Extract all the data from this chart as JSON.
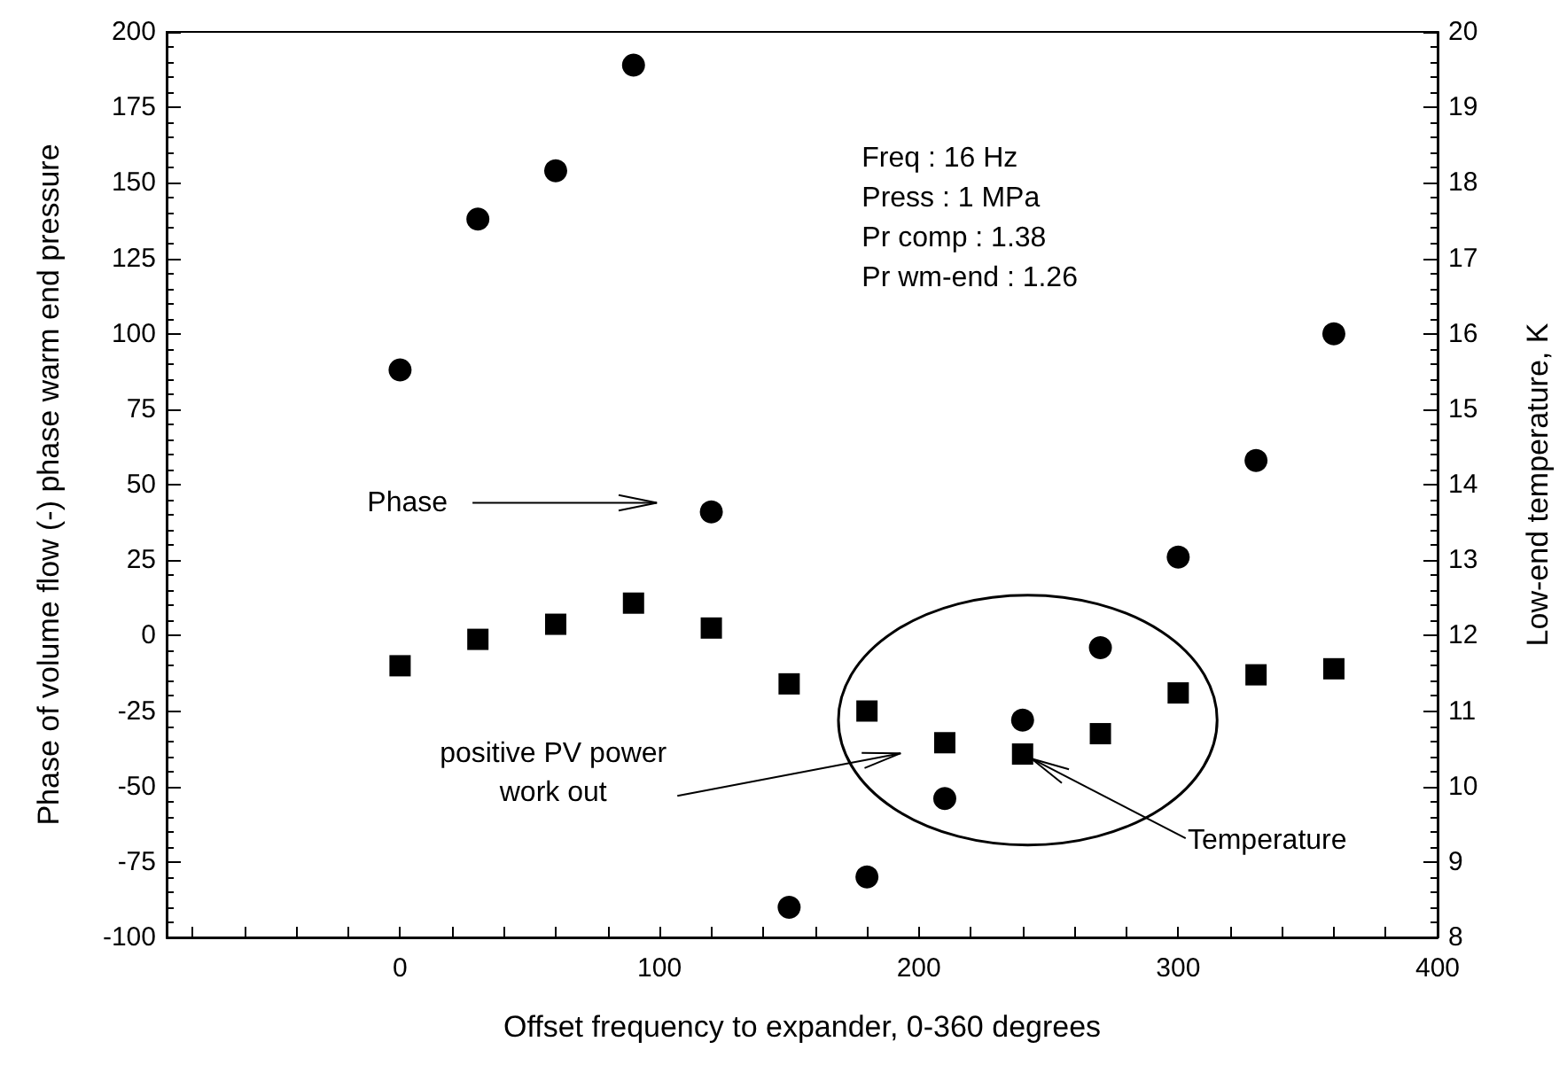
{
  "chart_data": {
    "type": "scatter",
    "xlabel": "Offset frequency to expander, 0-360 degrees",
    "ylabel": "Phase of volume flow (-) phase warm end pressure",
    "y2label": "Low-end temperature, K",
    "x": [
      0,
      30,
      60,
      90,
      120,
      150,
      180,
      210,
      240,
      270,
      300,
      330,
      360
    ],
    "series": [
      {
        "marker": "circle",
        "color": "#000000",
        "values": [
          88,
          138,
          154,
          189,
          41,
          -90,
          -80,
          -54,
          -28,
          -4,
          26,
          58,
          100
        ]
      },
      {
        "marker": "square",
        "color": "#000000",
        "axis": "y2",
        "values": [
          11.6,
          11.95,
          12.15,
          12.43,
          12.1,
          11.36,
          11.0,
          10.58,
          10.43,
          10.7,
          11.24,
          11.48,
          11.56
        ]
      }
    ],
    "xlim": [
      -90,
      400
    ],
    "xticks": [
      0,
      100,
      200,
      300,
      400
    ],
    "ylim": [
      -100,
      200
    ],
    "yticks": [
      -100,
      -75,
      -50,
      -25,
      0,
      25,
      50,
      75,
      100,
      125,
      150,
      175,
      200
    ],
    "y2lim": [
      8,
      20
    ],
    "y2ticks": [
      8,
      9,
      10,
      11,
      12,
      13,
      14,
      15,
      16,
      17,
      18,
      19,
      20
    ],
    "annotations": [
      "Freq : 16 Hz",
      "Press : 1 MPa",
      "Pr comp : 1.38",
      "Pr wm-end : 1.26",
      "Phase",
      "positive PV power\nwork out",
      {
        "text": "Temperature",
        "x": 240,
        "y": -39
      }
    ]
  }
}
